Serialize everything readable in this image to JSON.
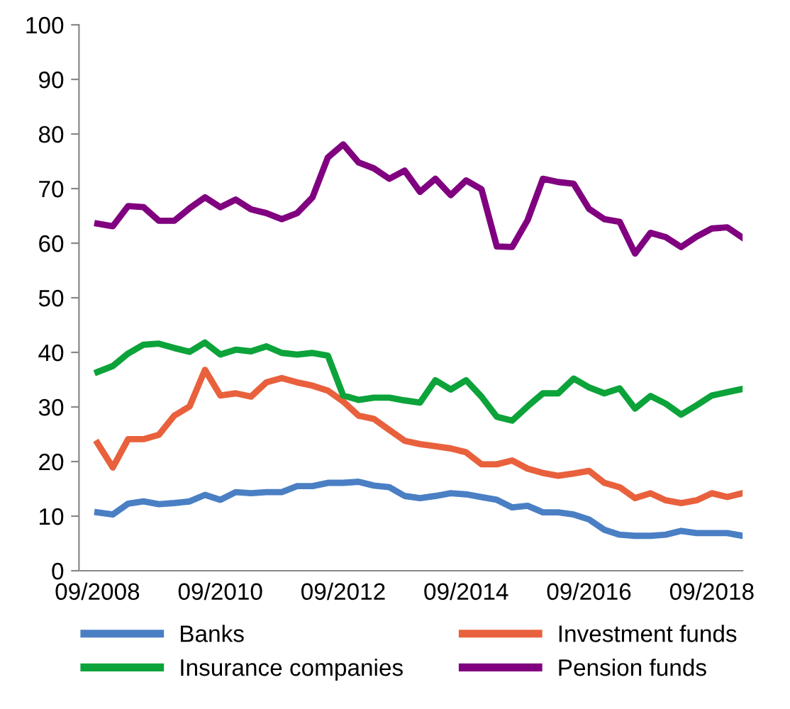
{
  "chart_data": {
    "type": "line",
    "categories": [
      "09/2008",
      null,
      null,
      null,
      null,
      null,
      null,
      null,
      "09/2010",
      null,
      null,
      null,
      null,
      null,
      null,
      null,
      "09/2012",
      null,
      null,
      null,
      null,
      null,
      null,
      null,
      "09/2014",
      null,
      null,
      null,
      null,
      null,
      null,
      null,
      "09/2016",
      null,
      null,
      null,
      null,
      null,
      null,
      null,
      "09/2018",
      null,
      null
    ],
    "series": [
      {
        "name": "Banks",
        "color": "#4a7fc4",
        "values": [
          10.7,
          10.3,
          12.3,
          12.7,
          12.2,
          12.4,
          12.7,
          13.9,
          13.0,
          14.4,
          14.2,
          14.4,
          14.4,
          15.5,
          15.5,
          16.1,
          16.1,
          16.3,
          15.6,
          15.3,
          13.7,
          13.3,
          13.7,
          14.2,
          14.0,
          13.5,
          13.0,
          11.6,
          11.9,
          10.7,
          10.7,
          10.3,
          9.4,
          7.5,
          6.6,
          6.4,
          6.4,
          6.6,
          7.3,
          6.9,
          6.9,
          6.9,
          6.4
        ]
      },
      {
        "name": "Investment funds",
        "color": "#e8613c",
        "values": [
          23.4,
          18.9,
          24.1,
          24.1,
          24.9,
          28.4,
          30.1,
          36.8,
          32.1,
          32.5,
          31.9,
          34.5,
          35.3,
          34.5,
          33.9,
          33.0,
          31.0,
          28.4,
          27.8,
          25.8,
          23.8,
          23.2,
          22.8,
          22.4,
          21.7,
          19.5,
          19.5,
          20.2,
          18.7,
          17.9,
          17.4,
          17.8,
          18.3,
          16.1,
          15.3,
          13.3,
          14.2,
          12.9,
          12.4,
          12.9,
          14.2,
          13.5,
          14.2
        ]
      },
      {
        "name": "Insurance companies",
        "color": "#0ca33a",
        "values": [
          36.4,
          37.5,
          39.8,
          41.4,
          41.6,
          40.8,
          40.1,
          41.8,
          39.6,
          40.5,
          40.2,
          41.1,
          39.9,
          39.6,
          39.9,
          39.4,
          32.1,
          31.3,
          31.7,
          31.7,
          31.2,
          30.8,
          34.9,
          33.2,
          34.9,
          31.9,
          28.2,
          27.5,
          30.1,
          32.5,
          32.5,
          35.2,
          33.6,
          32.5,
          33.4,
          29.7,
          32.0,
          30.6,
          28.6,
          30.3,
          32.1,
          32.7,
          33.3
        ]
      },
      {
        "name": "Pension funds",
        "color": "#800080",
        "values": [
          63.6,
          63.1,
          66.8,
          66.6,
          64.1,
          64.1,
          66.4,
          68.4,
          66.6,
          68.0,
          66.2,
          65.5,
          64.4,
          65.5,
          68.4,
          75.7,
          78.1,
          74.8,
          73.7,
          71.8,
          73.3,
          69.4,
          71.8,
          68.8,
          71.5,
          69.9,
          59.4,
          59.3,
          64.2,
          71.8,
          71.2,
          70.9,
          66.3,
          64.4,
          63.9,
          58.1,
          61.9,
          61.1,
          59.3,
          61.2,
          62.7,
          62.9,
          61.0
        ]
      }
    ],
    "ylim": [
      0,
      100
    ],
    "yticks": [
      0,
      10,
      20,
      30,
      40,
      50,
      60,
      70,
      80,
      90,
      100
    ],
    "grid": false,
    "legend": "bottom",
    "marker": "none",
    "line_style": "solid"
  }
}
